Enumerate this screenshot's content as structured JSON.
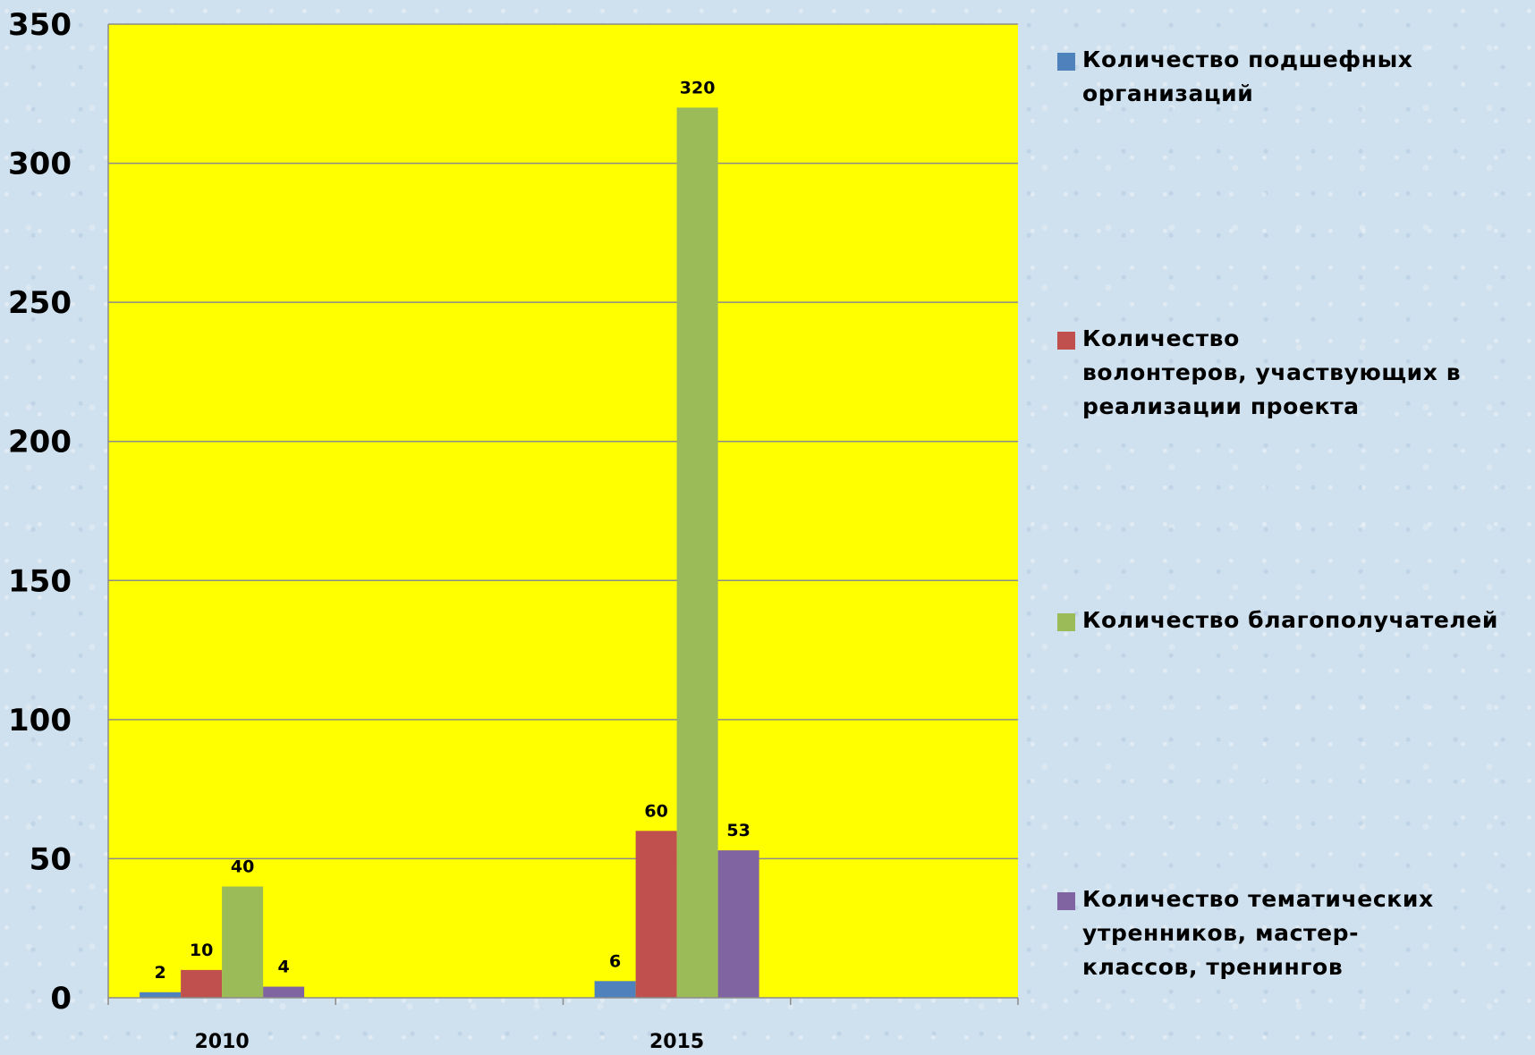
{
  "chart_data": {
    "type": "bar",
    "categories": [
      "2010",
      "2015"
    ],
    "ylim": [
      0,
      350
    ],
    "yticks": [
      0,
      50,
      100,
      150,
      200,
      250,
      300,
      350
    ],
    "grid": true,
    "plot_background": "#ffff00",
    "legend_position": "right",
    "series": [
      {
        "name": "Количество подшефных\nорганизаций",
        "color": "#4f81bd",
        "values": [
          2,
          6
        ]
      },
      {
        "name": "Количество\nволонтеров, участвующих в\nреализации проекта",
        "color": "#c0504d",
        "values": [
          10,
          60
        ]
      },
      {
        "name": "Количество благополучателей",
        "color": "#9bbb59",
        "values": [
          40,
          320
        ]
      },
      {
        "name": "Количество тематических\nутренников, мастер-\nклассов, тренингов",
        "color": "#8064a2",
        "values": [
          4,
          53
        ]
      }
    ]
  }
}
